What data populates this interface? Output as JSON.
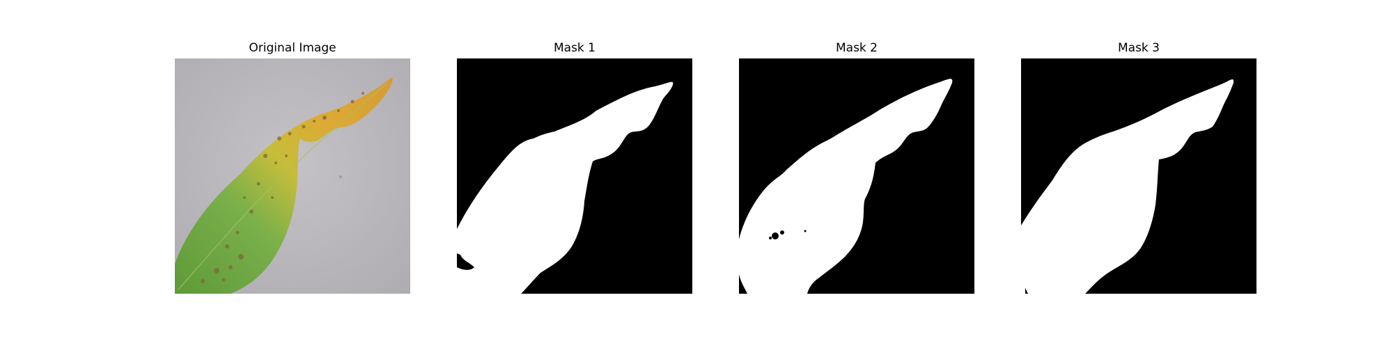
{
  "figure": {
    "panels": [
      {
        "title": "Original Image",
        "kind": "photo"
      },
      {
        "title": "Mask 1",
        "kind": "mask"
      },
      {
        "title": "Mask 2",
        "kind": "mask"
      },
      {
        "title": "Mask 3",
        "kind": "mask"
      }
    ],
    "colors": {
      "background": "#ffffff",
      "mask_background": "#000000",
      "mask_foreground": "#ffffff",
      "photo_surface": "#b9b7bc",
      "leaf_green": "#6fa640",
      "leaf_yellow": "#d6b731",
      "leaf_orange": "#dba03a"
    }
  }
}
